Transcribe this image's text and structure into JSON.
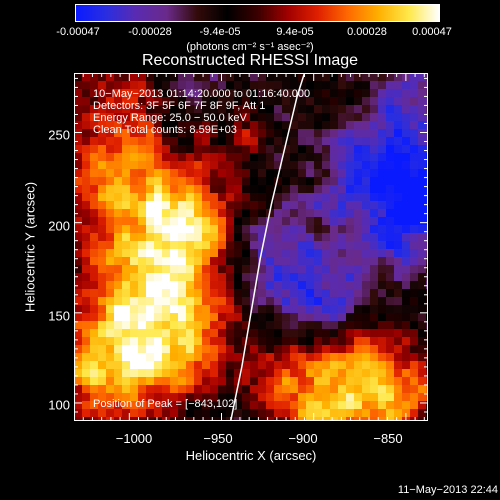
{
  "colors": {
    "colorbar_stops": [
      "#0a1aff",
      "#2a2ee0",
      "#5a2bb0",
      "#6a2a8a",
      "#330a0a",
      "#000000",
      "#3a0000",
      "#a00000",
      "#e02000",
      "#ff6a00",
      "#ffb000",
      "#ffe84a",
      "#ffffff"
    ]
  },
  "colorbar": {
    "ticks": [
      "-0.00047",
      "-0.00028",
      "-9.4e-05",
      "9.4e-05",
      "0.00028",
      "0.00047"
    ],
    "units": "(photons cm⁻² s⁻¹ asec⁻²)"
  },
  "chart_data": {
    "type": "heatmap",
    "title": "Reconstructed RHESSI Image",
    "xlabel": "Heliocentric X (arcsec)",
    "ylabel": "Heliocentric Y (arcsec)",
    "xlim": [
      -1030,
      -838
    ],
    "ylim": [
      90,
      283
    ],
    "xticks": [
      "−1000",
      "−950",
      "−900",
      "−850"
    ],
    "yticks": [
      "100",
      "150",
      "200",
      "250"
    ],
    "xtick_values": [
      -1000,
      -950,
      -900,
      -850
    ],
    "ytick_values": [
      100,
      150,
      200,
      250
    ],
    "limb_curve": [
      [
        -945,
        90
      ],
      [
        -939,
        120
      ],
      [
        -934,
        150
      ],
      [
        -929,
        180
      ],
      [
        -923,
        210
      ],
      [
        -916,
        240
      ],
      [
        -909,
        270
      ],
      [
        -905,
        283
      ]
    ],
    "peak_position": [
      -843,
      102
    ],
    "annotations": [
      "10−May−2013 01:14:20.000 to 01:16:40.000",
      "Detectors: 3F 5F 6F 7F 8F 9F, Att 1",
      "Energy Range: 25.0 − 50.0 keV",
      "Clean     Total counts: 8.59E+03"
    ],
    "peak_label": "Position of Peak = [−843,102]"
  },
  "footer": {
    "date": "11−May−2013 22:44"
  }
}
